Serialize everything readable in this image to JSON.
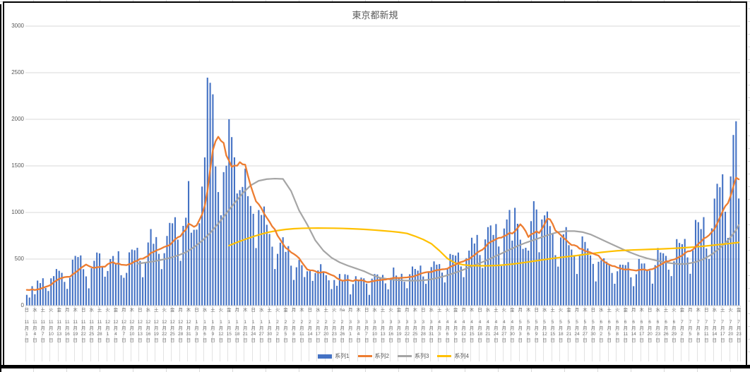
{
  "title": "東京都新規",
  "legend": {
    "items": [
      {
        "label": "系列1",
        "marker": "bar",
        "color": "#4472C4"
      },
      {
        "label": "系列2",
        "marker": "line",
        "color": "#ED7D31"
      },
      {
        "label": "系列3",
        "marker": "line",
        "color": "#A5A5A5"
      },
      {
        "label": "系列4",
        "marker": "line",
        "color": "#FFC000"
      }
    ]
  },
  "colors": {
    "bar": "#4472C4",
    "line2": "#ED7D31",
    "line3": "#A5A5A5",
    "line4": "#FFC000",
    "gridline": "#d9d9d9",
    "axis_text": "#595959",
    "frame": "#000000"
  },
  "chart_data": {
    "type": "bar",
    "subtype": "combo-bar-with-lines",
    "title": "東京都新規",
    "xlabel": "",
    "ylabel": "",
    "ylim": [
      0,
      3000
    ],
    "grid": true,
    "legend_position": "bottom",
    "y_ticks": [
      0,
      500,
      1000,
      1500,
      2000,
      2500,
      3000
    ],
    "x_label_every_n_points": 3,
    "x_labels": [
      "日 11月1日",
      "水 11月4日",
      "土 11月7日",
      "火 11月10日",
      "金 11月13日",
      "月 11月16日",
      "木 11月19日",
      "日 11月22日",
      "水 11月25日",
      "土 11月28日",
      "火 12月1日",
      "金 12月4日",
      "月 12月7日",
      "木 12月10日",
      "日 12月13日",
      "水 12月16日",
      "土 12月19日",
      "火 12月22日",
      "金 12月25日",
      "月 12月28日",
      "木 12月31日",
      "日 1月3日",
      "水 1月6日",
      "土 1月9日",
      "火 1月12日",
      "金 1月15日",
      "月 1月18日",
      "木 1月21日",
      "日 1月24日",
      "水 1月27日",
      "土 1月30日",
      "火 2月2日",
      "金 2月5日",
      "月 2月8日",
      "木 2月11日",
      "日 2月14日",
      "水 2月17日",
      "土 2月20日",
      "火 2月23日",
      "ha 2月26日",
      "月 3月1日",
      "木 3月4日",
      "日 3月7日",
      "水 3月10日",
      "土 3月13日",
      "火 3月16日",
      "金 3月19日",
      "月 3月22日",
      "木 3月25日",
      "日 3月28日",
      "水 3月31日",
      "土 4月3日",
      "火 4月6日",
      "金 4月9日",
      "月 4月12日",
      "木 4月15日",
      "日 4月18日",
      "水 4月21日",
      "土 4月24日",
      "火 4月27日",
      "金 4月30日",
      "月 5月3日",
      "木 5月6日",
      "日 5月9日",
      "水 5月12日",
      "土 5月15日",
      "火 5月18日",
      "金 5月21日",
      "月 5月24日",
      "木 5月27日",
      "日 5月30日",
      "水 6月2日",
      "土 6月5日",
      "火 6月8日",
      "金 6月11日",
      "月 6月14日",
      "木 6月17日",
      "日 6月20日",
      "水 6月23日",
      "土 6月26日",
      "火 6月29日",
      "金 7月2日",
      "月 7月5日",
      "木 7月8日",
      "日 7月11日",
      "水 7月14日",
      "土 7月17日",
      "火 7月20日",
      "金 7月23日"
    ],
    "series": [
      {
        "name": "系列1",
        "type": "bar",
        "color": "#4472C4",
        "values": [
          116,
          87,
          209,
          122,
          269,
          242,
          294,
          189,
          157,
          293,
          317,
          393,
          374,
          352,
          255,
          180,
          298,
          493,
          534,
          522,
          539,
          391,
          314,
          186,
          401,
          481,
          570,
          561,
          418,
          311,
          372,
          500,
          533,
          449,
          584,
          327,
          299,
          352,
          572,
          602,
          595,
          621,
          480,
          305,
          460,
          678,
          822,
          664,
          736,
          556,
          392,
          563,
          748,
          888,
          884,
          949,
          708,
          481,
          856,
          944,
          1337,
          783,
          814,
          816,
          884,
          1278,
          1591,
          2447,
          2392,
          2268,
          1494,
          1219,
          970,
          1433,
          1502,
          2001,
          1809,
          1592,
          1204,
          1240,
          1274,
          1471,
          1175,
          1070,
          986,
          618,
          1026,
          973,
          1064,
          868,
          769,
          633,
          393,
          556,
          676,
          734,
          577,
          639,
          429,
          276,
          412,
          491,
          434,
          307,
          369,
          371,
          266,
          350,
          378,
          445,
          353,
          327,
          272,
          178,
          275,
          213,
          340,
          270,
          337,
          329,
          121,
          232,
          316,
          279,
          301,
          293,
          237,
          116,
          290,
          340,
          335,
          304,
          330,
          239,
          175,
          300,
          409,
          323,
          303,
          342,
          256,
          187,
          337,
          420,
          394,
          376,
          430,
          313,
          234,
          364,
          414,
          475,
          440,
          446,
          355,
          249,
          399,
          555,
          545,
          537,
          570,
          421,
          306,
          510,
          591,
          729,
          667,
          759,
          543,
          405,
          711,
          843,
          861,
          759,
          876,
          635,
          425,
          828,
          925,
          1027,
          698,
          1050,
          879,
          708,
          609,
          621,
          591,
          907,
          1121,
          1032,
          573,
          925,
          969,
          1010,
          854,
          772,
          542,
          419,
          732,
          766,
          843,
          649,
          602,
          535,
          340,
          542,
          743,
          684,
          614,
          539,
          448,
          260,
          471,
          487,
          508,
          472,
          436,
          351,
          235,
          369,
          440,
          439,
          435,
          467,
          304,
          209,
          337,
          501,
          452,
          453,
          388,
          376,
          236,
          435,
          619,
          570,
          562,
          534,
          386,
          317,
          476,
          714,
          673,
          660,
          716,
          518,
          342,
          593,
          920,
          896,
          822,
          950,
          614,
          502,
          830,
          1149,
          1308,
          1271,
          1410,
          1008,
          727,
          1387,
          1832,
          1979,
          1150
        ]
      },
      {
        "name": "系列2",
        "type": "line",
        "color": "#ED7D31",
        "derived": "trailing-7-day-moving-average-of-series1",
        "window": 7,
        "prev_values": [
          102,
          158,
          171,
          221,
          204,
          215
        ]
      },
      {
        "name": "系列3",
        "type": "line",
        "color": "#A5A5A5",
        "points": [
          [
            41,
            450
          ],
          [
            44,
            462
          ],
          [
            47,
            475
          ],
          [
            50,
            492
          ],
          [
            53,
            512
          ],
          [
            56,
            538
          ],
          [
            59,
            572
          ],
          [
            62,
            628
          ],
          [
            65,
            695
          ],
          [
            68,
            780
          ],
          [
            71,
            880
          ],
          [
            74,
            990
          ],
          [
            77,
            1100
          ],
          [
            80,
            1205
          ],
          [
            83,
            1290
          ],
          [
            86,
            1340
          ],
          [
            89,
            1358
          ],
          [
            92,
            1363
          ],
          [
            95,
            1360
          ],
          [
            98,
            1230
          ],
          [
            101,
            1020
          ],
          [
            104,
            870
          ],
          [
            107,
            700
          ],
          [
            110,
            590
          ],
          [
            113,
            515
          ],
          [
            116,
            465
          ],
          [
            119,
            430
          ],
          [
            122,
            400
          ],
          [
            125,
            370
          ],
          [
            128,
            330
          ],
          [
            131,
            300
          ],
          [
            134,
            285
          ],
          [
            137,
            275
          ],
          [
            140,
            270
          ],
          [
            143,
            268
          ],
          [
            146,
            270
          ],
          [
            149,
            278
          ],
          [
            152,
            295
          ],
          [
            155,
            318
          ],
          [
            158,
            345
          ],
          [
            161,
            375
          ],
          [
            164,
            410
          ],
          [
            167,
            445
          ],
          [
            170,
            480
          ],
          [
            173,
            520
          ],
          [
            176,
            560
          ],
          [
            179,
            600
          ],
          [
            182,
            640
          ],
          [
            185,
            675
          ],
          [
            188,
            705
          ],
          [
            191,
            735
          ],
          [
            194,
            765
          ],
          [
            197,
            790
          ],
          [
            200,
            800
          ],
          [
            203,
            800
          ],
          [
            206,
            790
          ],
          [
            209,
            765
          ],
          [
            212,
            725
          ],
          [
            215,
            685
          ],
          [
            218,
            645
          ],
          [
            221,
            605
          ],
          [
            224,
            568
          ],
          [
            227,
            535
          ],
          [
            230,
            508
          ],
          [
            233,
            487
          ],
          [
            236,
            468
          ],
          [
            239,
            455
          ],
          [
            242,
            446
          ],
          [
            245,
            450
          ],
          [
            248,
            468
          ],
          [
            251,
            500
          ],
          [
            254,
            550
          ],
          [
            257,
            618
          ],
          [
            260,
            700
          ],
          [
            263,
            810
          ],
          [
            264,
            865
          ]
        ]
      },
      {
        "name": "系列4",
        "type": "line",
        "color": "#FFC000",
        "points": [
          [
            75,
            645
          ],
          [
            78,
            680
          ],
          [
            81,
            712
          ],
          [
            84,
            742
          ],
          [
            87,
            768
          ],
          [
            90,
            790
          ],
          [
            93,
            806
          ],
          [
            96,
            818
          ],
          [
            99,
            826
          ],
          [
            102,
            830
          ],
          [
            105,
            832
          ],
          [
            108,
            833
          ],
          [
            111,
            832
          ],
          [
            114,
            831
          ],
          [
            117,
            829
          ],
          [
            120,
            826
          ],
          [
            123,
            822
          ],
          [
            126,
            817
          ],
          [
            129,
            811
          ],
          [
            132,
            804
          ],
          [
            135,
            797
          ],
          [
            138,
            788
          ],
          [
            141,
            775
          ],
          [
            144,
            745
          ],
          [
            147,
            710
          ],
          [
            150,
            665
          ],
          [
            153,
            590
          ],
          [
            156,
            505
          ],
          [
            159,
            455
          ],
          [
            162,
            438
          ],
          [
            165,
            430
          ],
          [
            168,
            428
          ],
          [
            171,
            428
          ],
          [
            174,
            431
          ],
          [
            177,
            437
          ],
          [
            180,
            446
          ],
          [
            183,
            457
          ],
          [
            186,
            469
          ],
          [
            189,
            482
          ],
          [
            192,
            495
          ],
          [
            195,
            507
          ],
          [
            198,
            518
          ],
          [
            201,
            528
          ],
          [
            204,
            538
          ],
          [
            207,
            550
          ],
          [
            210,
            561
          ],
          [
            213,
            572
          ],
          [
            216,
            581
          ],
          [
            219,
            589
          ],
          [
            222,
            594
          ],
          [
            225,
            598
          ],
          [
            228,
            601
          ],
          [
            231,
            604
          ],
          [
            234,
            607
          ],
          [
            237,
            611
          ],
          [
            240,
            615
          ],
          [
            243,
            620
          ],
          [
            246,
            626
          ],
          [
            249,
            633
          ],
          [
            252,
            641
          ],
          [
            255,
            650
          ],
          [
            258,
            659
          ],
          [
            261,
            668
          ],
          [
            264,
            678
          ]
        ]
      }
    ]
  }
}
